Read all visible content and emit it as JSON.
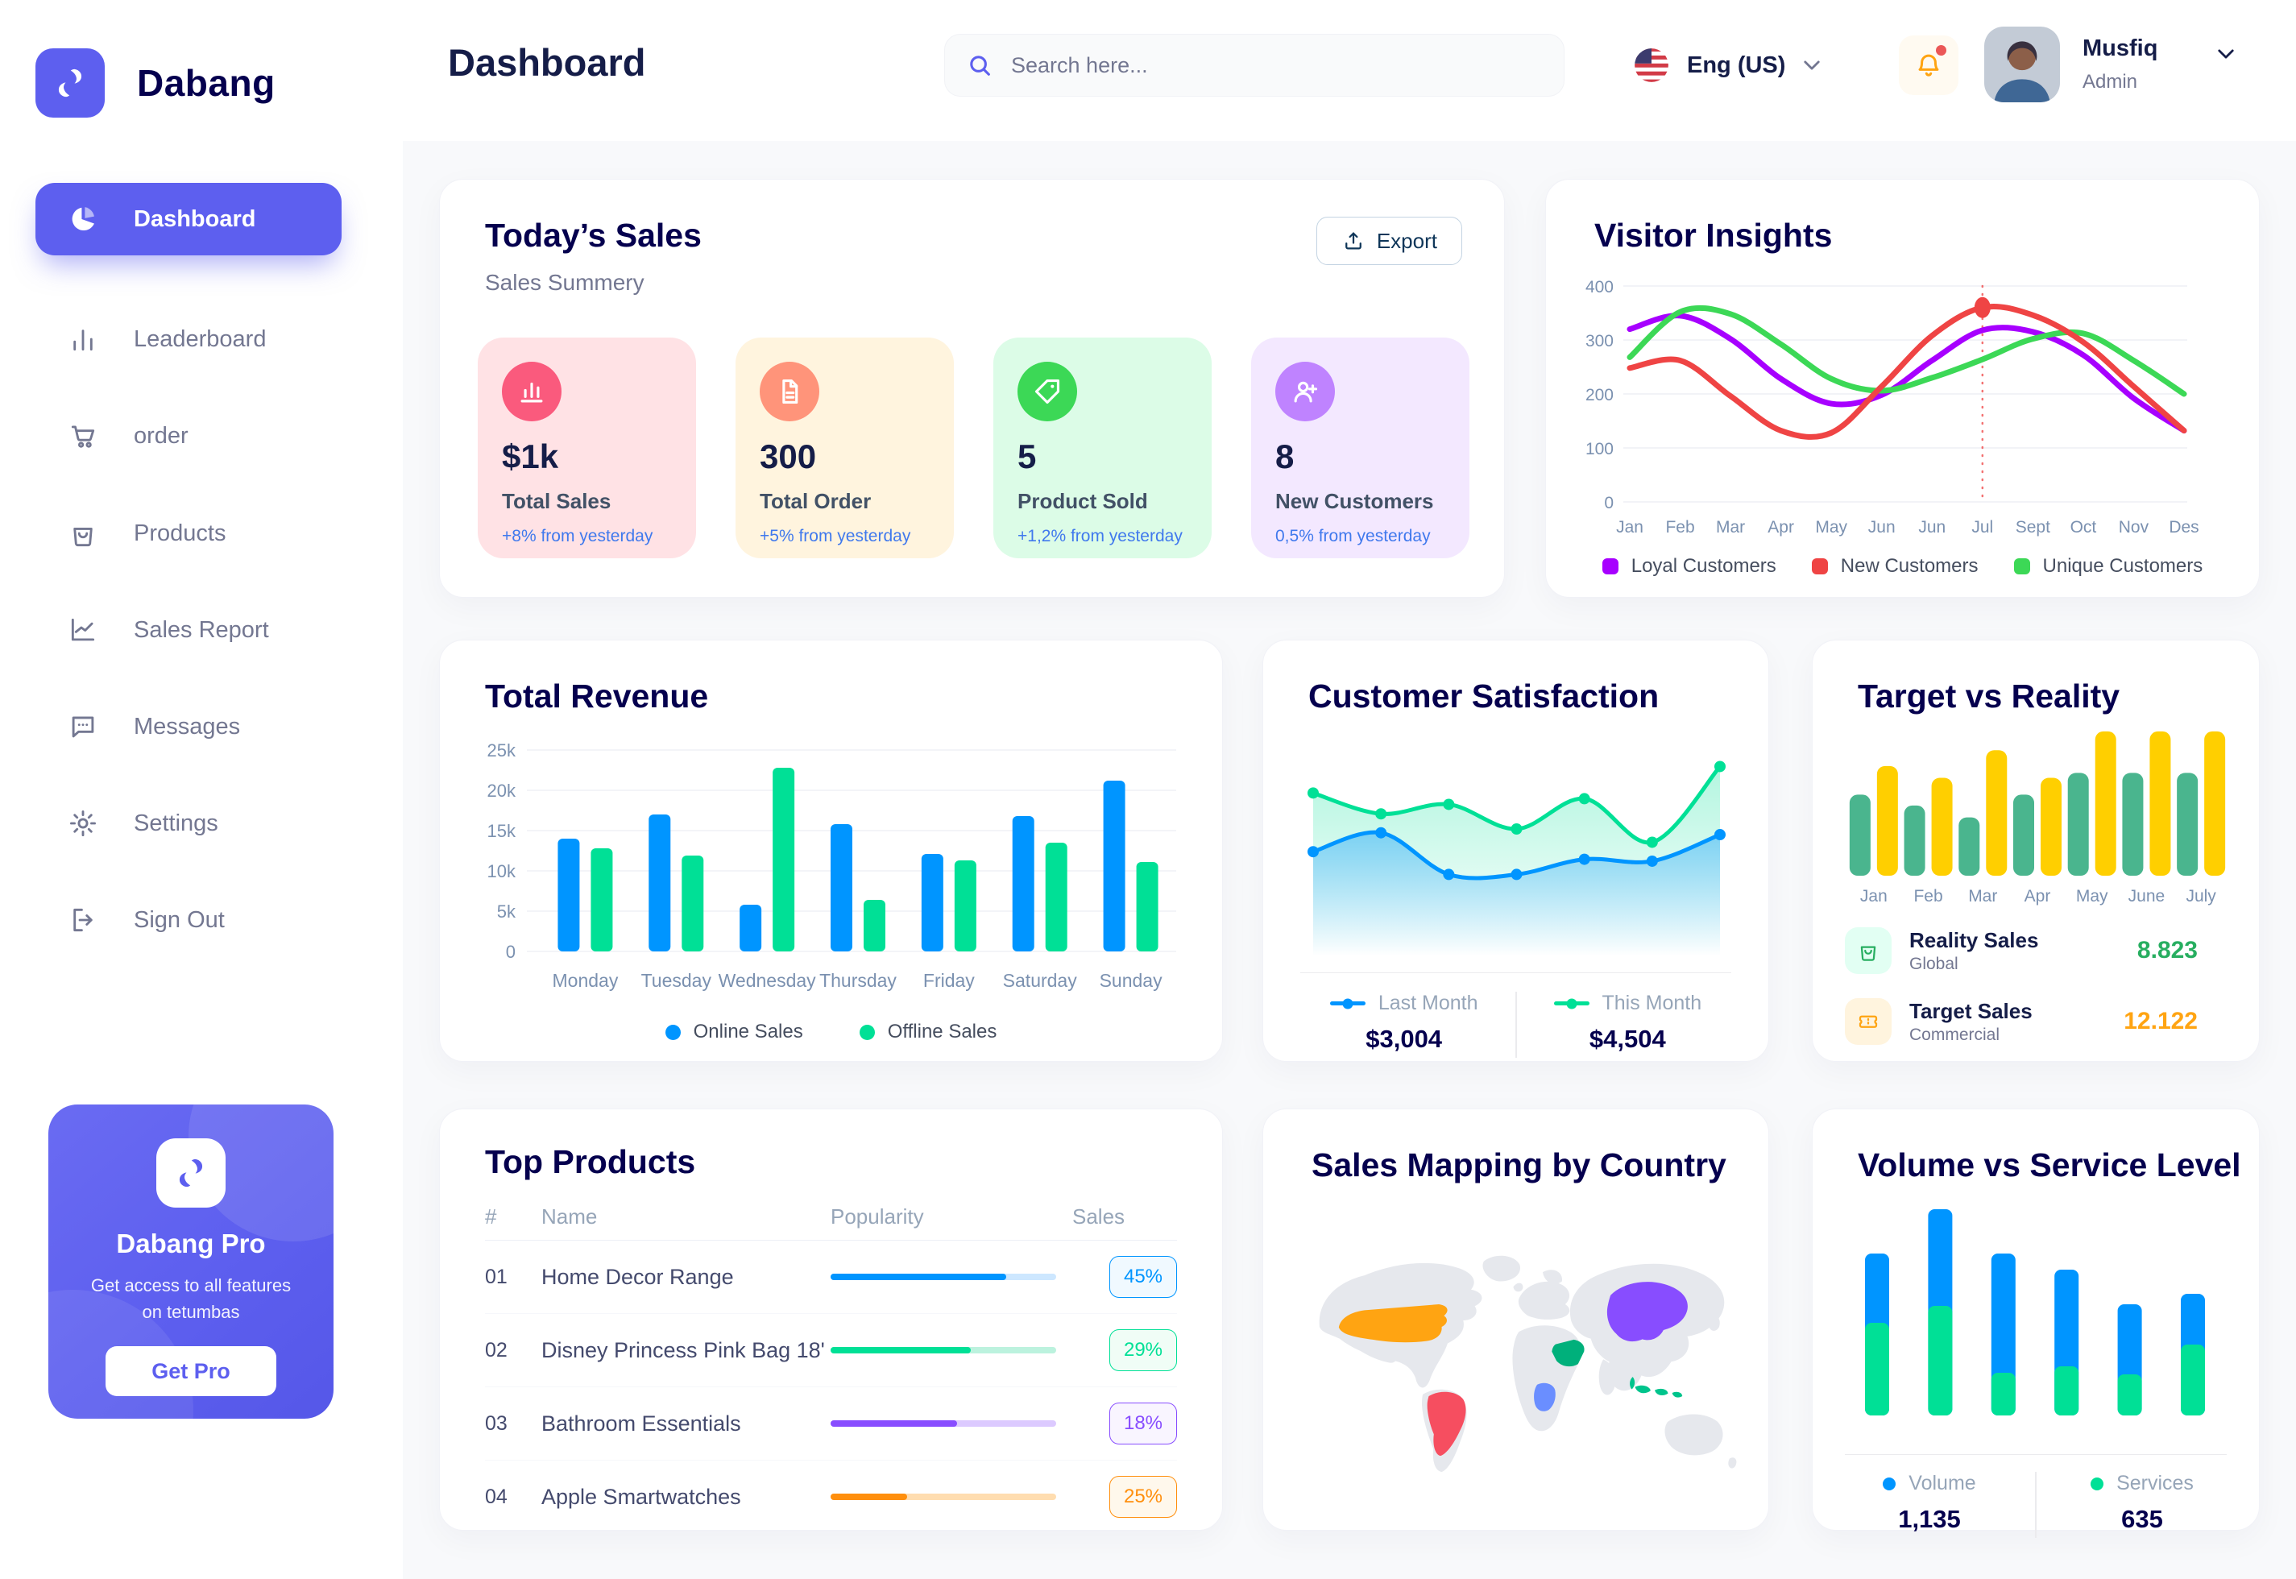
{
  "brand": {
    "name": "Dabang"
  },
  "header": {
    "title": "Dashboard",
    "search_placeholder": "Search here...",
    "language": "Eng (US)",
    "user_name": "Musfiq",
    "user_role": "Admin"
  },
  "sidebar": {
    "items": [
      {
        "label": "Dashboard",
        "icon": "dashboard",
        "active": true
      },
      {
        "label": "Leaderboard",
        "icon": "leaderboard"
      },
      {
        "label": "order",
        "icon": "order"
      },
      {
        "label": "Products",
        "icon": "products"
      },
      {
        "label": "Sales Report",
        "icon": "sales"
      },
      {
        "label": "Messages",
        "icon": "messages"
      },
      {
        "label": "Settings",
        "icon": "settings"
      },
      {
        "label": "Sign Out",
        "icon": "signout"
      }
    ],
    "promo_title": "Dabang Pro",
    "promo_text": "Get access to all features on tetumbas",
    "promo_button": "Get Pro"
  },
  "today": {
    "title": "Today’s Sales",
    "subtitle": "Sales Summery",
    "export_label": "Export",
    "cards": [
      {
        "value": "$1k",
        "label": "Total Sales",
        "delta": "+8% from yesterday",
        "bg": "#FFE2E5",
        "icon_bg": "#FA5A7D",
        "icon": "chart"
      },
      {
        "value": "300",
        "label": "Total Order",
        "delta": "+5% from yesterday",
        "bg": "#FFF4DE",
        "icon_bg": "#FF947A",
        "icon": "file"
      },
      {
        "value": "5",
        "label": "Product Sold",
        "delta": "+1,2% from yesterday",
        "bg": "#DCFCE7",
        "icon_bg": "#3CD856",
        "icon": "tag"
      },
      {
        "value": "8",
        "label": "New Customers",
        "delta": "0,5% from yesterday",
        "bg": "#F3E8FF",
        "icon_bg": "#BF83FF",
        "icon": "user"
      }
    ]
  },
  "chart_data": [
    {
      "id": "visitor",
      "type": "line",
      "title": "Visitor Insights",
      "x": [
        "Jan",
        "Feb",
        "Mar",
        "Apr",
        "May",
        "Jun",
        "Jun",
        "Jul",
        "Sept",
        "Oct",
        "Nov",
        "Des"
      ],
      "ylim": [
        0,
        400
      ],
      "yticks": [
        0,
        100,
        200,
        300,
        400
      ],
      "grid": true,
      "legend_position": "bottom",
      "series": [
        {
          "name": "Loyal Customers",
          "color": "#A700FF",
          "values": [
            320,
            345,
            302,
            228,
            182,
            198,
            262,
            318,
            315,
            272,
            192,
            132
          ]
        },
        {
          "name": "New Customers",
          "color": "#EF4444",
          "values": [
            248,
            262,
            196,
            132,
            128,
            214,
            308,
            360,
            346,
            296,
            214,
            132
          ]
        },
        {
          "name": "Unique Customers",
          "color": "#3CD856",
          "values": [
            268,
            352,
            348,
            292,
            228,
            206,
            230,
            264,
            302,
            312,
            262,
            200
          ]
        }
      ],
      "marker": {
        "series": 1,
        "index": 7
      }
    },
    {
      "id": "revenue",
      "type": "bar",
      "title": "Total Revenue",
      "categories": [
        "Monday",
        "Tuesday",
        "Wednesday",
        "Thursday",
        "Friday",
        "Saturday",
        "Sunday"
      ],
      "ylim": [
        0,
        25000
      ],
      "ytick_labels": [
        "0",
        "5k",
        "10k",
        "15k",
        "20k",
        "25k"
      ],
      "grid": true,
      "legend_position": "bottom",
      "series": [
        {
          "name": "Online Sales",
          "color": "#0095FF",
          "values": [
            14000,
            17000,
            5800,
            15800,
            12100,
            16800,
            21200
          ]
        },
        {
          "name": "Offline Sales",
          "color": "#00E096",
          "values": [
            12800,
            11900,
            22800,
            6400,
            11300,
            13500,
            11100
          ]
        }
      ]
    },
    {
      "id": "satisfaction",
      "type": "area",
      "title": "Customer Satisfaction",
      "ylim": [
        0,
        100
      ],
      "grid": false,
      "legend_position": "bottom",
      "series": [
        {
          "name": "Last Month",
          "color": "#0095FF",
          "total": "$3,004",
          "values": [
            48,
            58,
            36,
            36,
            44,
            43,
            57
          ]
        },
        {
          "name": "This Month",
          "color": "#00E096",
          "total": "$4,504",
          "values": [
            79,
            68,
            73,
            60,
            76,
            53,
            93
          ]
        }
      ]
    },
    {
      "id": "target",
      "type": "bar",
      "title": "Target vs Reality",
      "categories": [
        "Jan",
        "Feb",
        "Mar",
        "Apr",
        "May",
        "June",
        "July"
      ],
      "ylim": [
        0,
        15
      ],
      "grid": false,
      "legend_position": "bottom",
      "series": [
        {
          "name": "Reality Sales",
          "subtitle": "Global",
          "value": "8.823",
          "value_color": "#27AE60",
          "color": "#4AB58E",
          "tile_bg": "#E2FFF3",
          "values": [
            8.2,
            7.1,
            5.9,
            8.2,
            10.4,
            10.4,
            10.4
          ]
        },
        {
          "name": "Target Sales",
          "subtitle": "Commercial",
          "value": "12.122",
          "value_color": "#FFA412",
          "color": "#FFCF00",
          "tile_bg": "#FFF4DE",
          "values": [
            11.1,
            9.9,
            12.7,
            9.9,
            14.6,
            14.6,
            14.6
          ]
        }
      ]
    },
    {
      "id": "volume",
      "type": "stacked-bar",
      "title": "Volume vs Service Level",
      "ylim": [
        0,
        280
      ],
      "grid": false,
      "legend_position": "bottom",
      "series": [
        {
          "name": "Volume",
          "color": "#0095FF",
          "total": "1,135",
          "values": [
            86,
            120,
            148,
            120,
            87,
            63
          ]
        },
        {
          "name": "Services",
          "color": "#00E096",
          "total": "635",
          "values": [
            115,
            136,
            53,
            61,
            51,
            88
          ]
        }
      ]
    },
    {
      "id": "products",
      "type": "table",
      "title": "Top Products",
      "headers": [
        "#",
        "Name",
        "Popularity",
        "Sales"
      ],
      "rows": [
        {
          "num": "01",
          "name": "Home Decor Range",
          "fill": 0.78,
          "percent": "45%",
          "color": "#0095FF",
          "track": "#CDE7FF",
          "badge_bg": "#F0F9FF"
        },
        {
          "num": "02",
          "name": "Disney Princess Pink Bag 18'",
          "fill": 0.62,
          "percent": "29%",
          "color": "#00E096",
          "track": "#BCF2DE",
          "badge_bg": "#F0FDF6"
        },
        {
          "num": "03",
          "name": "Bathroom Essentials",
          "fill": 0.56,
          "percent": "18%",
          "color": "#884DFF",
          "track": "#DCCAFF",
          "badge_bg": "#F9F5FF"
        },
        {
          "num": "04",
          "name": "Apple Smartwatches",
          "fill": 0.34,
          "percent": "25%",
          "color": "#FF8F0D",
          "track": "#FFDDB0",
          "badge_bg": "#FFF8EC"
        }
      ]
    },
    {
      "id": "map",
      "type": "map",
      "title": "Sales Mapping by Country",
      "countries": [
        {
          "id": "us",
          "name": "United States",
          "color": "#FFA412"
        },
        {
          "id": "brazil",
          "name": "Brazil",
          "color": "#F64E60"
        },
        {
          "id": "drc",
          "name": "Congo (DRC)",
          "color": "#6A8EFF"
        },
        {
          "id": "saudi",
          "name": "Saudi Arabia",
          "color": "#00B07B"
        },
        {
          "id": "china",
          "name": "China",
          "color": "#884DFF"
        },
        {
          "id": "indonesia",
          "name": "Indonesia",
          "color": "#00C48C"
        }
      ]
    }
  ]
}
